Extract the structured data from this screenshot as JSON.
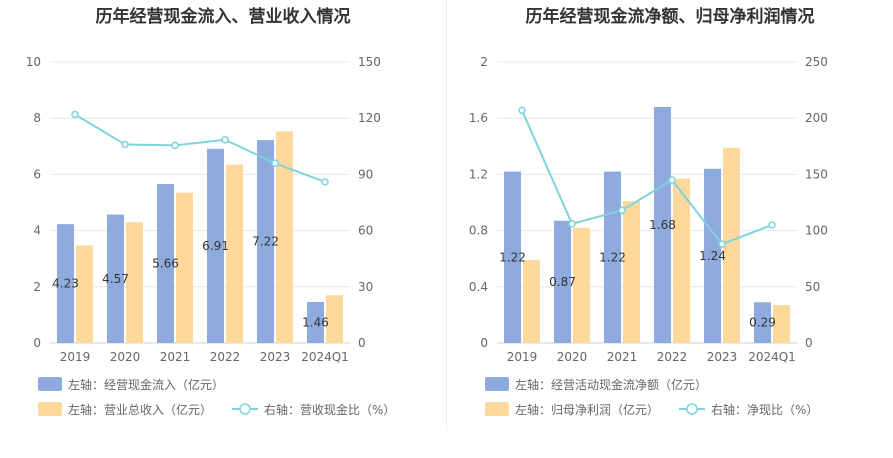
{
  "chart_data": [
    {
      "type": "bar",
      "title": "历年经营现金流入、营业收入情况",
      "categories": [
        "2019",
        "2020",
        "2021",
        "2022",
        "2023",
        "2024Q1"
      ],
      "left_axis": {
        "ylim": [
          0,
          10
        ],
        "ticks": [
          "0",
          "2",
          "4",
          "6",
          "8",
          "10"
        ]
      },
      "right_axis": {
        "ylim": [
          0,
          150
        ],
        "ticks": [
          "0",
          "30",
          "60",
          "90",
          "120",
          "150"
        ]
      },
      "series": [
        {
          "name": "左轴：经营现金流入（亿元）",
          "axis": "left",
          "kind": "bar",
          "color": "#8faadc",
          "values": [
            4.23,
            4.57,
            5.66,
            6.91,
            7.22,
            1.46
          ],
          "labels": [
            "4.23",
            "4.57",
            "5.66",
            "6.91",
            "7.22",
            "1.46"
          ]
        },
        {
          "name": "左轴：营业总收入（亿元）",
          "axis": "left",
          "kind": "bar",
          "color": "#ffd99b",
          "values": [
            3.47,
            4.3,
            5.35,
            6.35,
            7.53,
            1.7
          ]
        },
        {
          "name": "右轴：营收现金比（%）",
          "axis": "right",
          "kind": "line",
          "color": "#7fd3dc",
          "values": [
            122,
            106,
            105.5,
            108.5,
            96,
            86
          ]
        }
      ],
      "legend": "bottom-left",
      "grid": true
    },
    {
      "type": "bar",
      "title": "历年经营现金流净额、归母净利润情况",
      "categories": [
        "2019",
        "2020",
        "2021",
        "2022",
        "2023",
        "2024Q1"
      ],
      "left_axis": {
        "ylim": [
          0,
          2
        ],
        "ticks": [
          "0",
          "0.4",
          "0.8",
          "1.2",
          "1.6",
          "2"
        ]
      },
      "right_axis": {
        "ylim": [
          0,
          250
        ],
        "ticks": [
          "0",
          "50",
          "100",
          "150",
          "200",
          "250"
        ]
      },
      "series": [
        {
          "name": "左轴：经营活动现金流净额（亿元）",
          "axis": "left",
          "kind": "bar",
          "color": "#8faadc",
          "values": [
            1.22,
            0.87,
            1.22,
            1.68,
            1.24,
            0.29
          ],
          "labels": [
            "1.22",
            "0.87",
            "1.22",
            "1.68",
            "1.24",
            "0.29"
          ]
        },
        {
          "name": "左轴：归母净利润（亿元）",
          "axis": "left",
          "kind": "bar",
          "color": "#ffd99b",
          "values": [
            0.59,
            0.82,
            1.01,
            1.17,
            1.39,
            0.27
          ]
        },
        {
          "name": "右轴：净现比（%）",
          "axis": "right",
          "kind": "line",
          "color": "#7fd3dc",
          "values": [
            207,
            106,
            118,
            145,
            88,
            105
          ]
        }
      ],
      "legend": "bottom-left",
      "grid": true
    }
  ]
}
